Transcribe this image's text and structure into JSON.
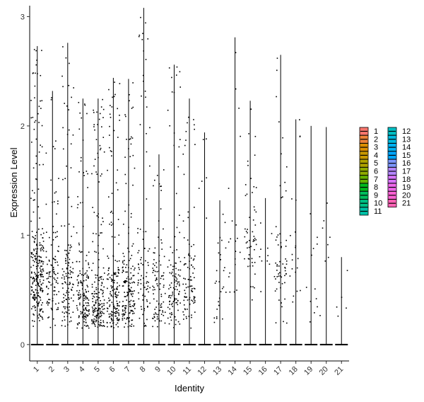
{
  "chart_data": {
    "type": "violin",
    "xlabel": "Identity",
    "ylabel": "Expression Level",
    "ylim": [
      -0.15,
      3.1
    ],
    "yticks": [
      0,
      1,
      2,
      3
    ],
    "categories": [
      "1",
      "2",
      "3",
      "4",
      "5",
      "6",
      "7",
      "8",
      "9",
      "10",
      "11",
      "12",
      "13",
      "14",
      "15",
      "16",
      "17",
      "18",
      "19",
      "20",
      "21"
    ],
    "max_values": [
      2.73,
      2.32,
      2.76,
      2.25,
      2.25,
      2.44,
      2.43,
      3.08,
      1.74,
      2.56,
      2.25,
      1.94,
      1.32,
      2.81,
      2.23,
      1.34,
      2.65,
      2.06,
      2.0,
      1.99,
      0.8
    ],
    "jitter_density": [
      260,
      110,
      130,
      160,
      190,
      180,
      170,
      90,
      95,
      110,
      95,
      6,
      28,
      20,
      55,
      10,
      60,
      20,
      12,
      8,
      5
    ],
    "jitter_center": [
      0.62,
      0.55,
      0.55,
      0.42,
      0.35,
      0.42,
      0.42,
      0.55,
      0.45,
      0.5,
      0.55,
      1.5,
      0.6,
      0.9,
      0.9,
      0.8,
      0.7,
      0.6,
      0.6,
      1.0,
      0.5
    ],
    "legend": {
      "position": "right",
      "entries": [
        {
          "label": "1",
          "color": "#F8766D"
        },
        {
          "label": "2",
          "color": "#EC8239"
        },
        {
          "label": "3",
          "color": "#DB8E00"
        },
        {
          "label": "4",
          "color": "#C79800"
        },
        {
          "label": "5",
          "color": "#AEA200"
        },
        {
          "label": "6",
          "color": "#8FAA00"
        },
        {
          "label": "7",
          "color": "#64B200"
        },
        {
          "label": "8",
          "color": "#00B81B"
        },
        {
          "label": "9",
          "color": "#00BD5C"
        },
        {
          "label": "10",
          "color": "#00C085"
        },
        {
          "label": "11",
          "color": "#00C1A7"
        },
        {
          "label": "12",
          "color": "#00BFC4"
        },
        {
          "label": "13",
          "color": "#00BADE"
        },
        {
          "label": "14",
          "color": "#00B2F3"
        },
        {
          "label": "15",
          "color": "#00A6FF"
        },
        {
          "label": "16",
          "color": "#7C96FF"
        },
        {
          "label": "17",
          "color": "#B385FF"
        },
        {
          "label": "18",
          "color": "#D874FD"
        },
        {
          "label": "19",
          "color": "#EF67EB"
        },
        {
          "label": "20",
          "color": "#FD61D3"
        },
        {
          "label": "21",
          "color": "#FF63B6"
        }
      ]
    }
  }
}
